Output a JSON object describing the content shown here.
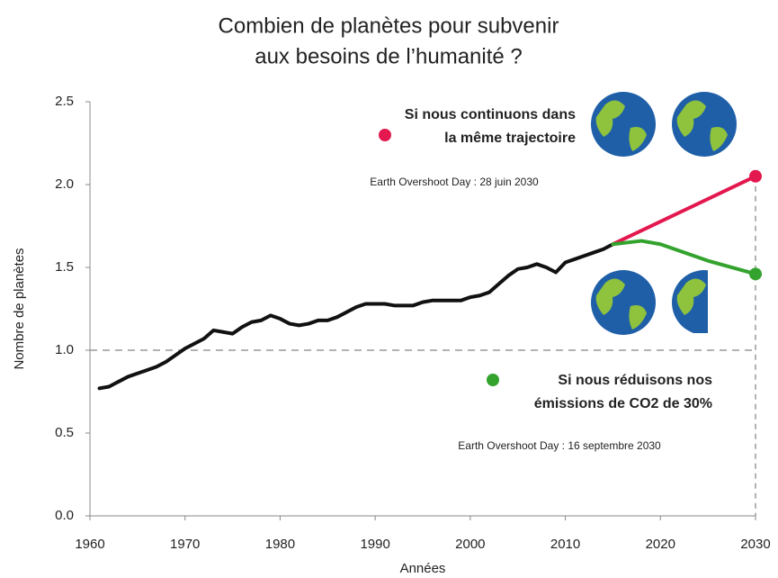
{
  "chart_data": {
    "type": "line",
    "title": [
      "Combien de planètes pour subvenir",
      "aux besoins de l’humanité ?"
    ],
    "x_label": "Années",
    "y_label": "Nombre de planètes",
    "xlim": [
      1960,
      2030
    ],
    "ylim": [
      0,
      2.5
    ],
    "xticks": [
      1960,
      1970,
      1980,
      1990,
      2000,
      2010,
      2020,
      2030
    ],
    "yticks": [
      {
        "value": 0,
        "label": "0.0"
      },
      0.5,
      {
        "value": 1,
        "label": "1.0"
      },
      1.5,
      {
        "value": 2,
        "label": "2.0"
      },
      2.5
    ],
    "reference_line": 1,
    "series": [
      {
        "color": "#111111",
        "x": [
          1961,
          1962,
          1963,
          1964,
          1965,
          1966,
          1967,
          1968,
          1969,
          1970,
          1971,
          1972,
          1973,
          1974,
          1975,
          1976,
          1977,
          1978,
          1979,
          1980,
          1981,
          1982,
          1983,
          1984,
          1985,
          1986,
          1987,
          1988,
          1989,
          1990,
          1991,
          1992,
          1993,
          1994,
          1995,
          1996,
          1997,
          1998,
          1999,
          2000,
          2001,
          2002,
          2003,
          2004,
          2005,
          2006,
          2007,
          2008,
          2009,
          2010,
          2011,
          2012,
          2013,
          2014,
          2015
        ],
        "values": [
          0.77,
          0.78,
          0.81,
          0.84,
          0.86,
          0.88,
          0.9,
          0.93,
          0.97,
          1.01,
          1.04,
          1.07,
          1.12,
          1.11,
          1.1,
          1.14,
          1.17,
          1.18,
          1.21,
          1.19,
          1.16,
          1.15,
          1.16,
          1.18,
          1.18,
          1.2,
          1.23,
          1.26,
          1.28,
          1.28,
          1.28,
          1.27,
          1.27,
          1.27,
          1.29,
          1.3,
          1.3,
          1.3,
          1.3,
          1.32,
          1.33,
          1.35,
          1.4,
          1.45,
          1.49,
          1.5,
          1.52,
          1.5,
          1.47,
          1.53,
          1.55,
          1.57,
          1.59,
          1.61,
          1.64
        ]
      },
      {
        "color": "#e3184e",
        "x": [
          2015,
          2030
        ],
        "values": [
          1.64,
          2.05
        ]
      },
      {
        "color": "#34a32e",
        "x": [
          2015,
          2018,
          2020,
          2025,
          2030
        ],
        "values": [
          1.64,
          1.66,
          1.64,
          1.54,
          1.46
        ]
      }
    ],
    "annotations": [
      {
        "series": 1,
        "lines": [
          "Si nous continuons dans",
          "la même trajectoire"
        ],
        "note": "Earth Overshoot Day : 28 juin 2030"
      },
      {
        "series": 2,
        "lines": [
          "Si nous réduisons nos",
          "émissions de CO2 de 30%"
        ],
        "note": "Earth Overshoot Day : 16 septembre 2030"
      }
    ]
  }
}
